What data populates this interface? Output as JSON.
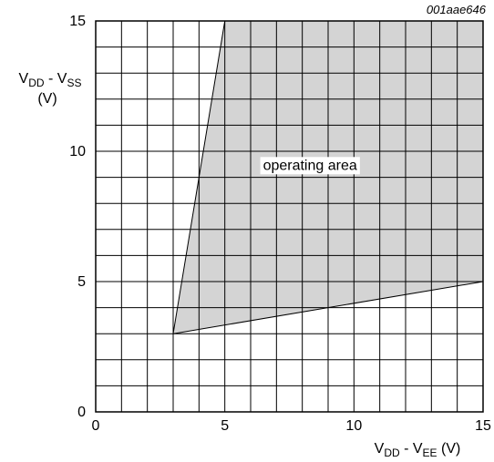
{
  "figure_id": "001aae646",
  "chart_data": {
    "type": "area",
    "x_label": {
      "main": "V",
      "sub1": "DD",
      "mid": " - V",
      "sub2": "EE",
      "unit": " (V)"
    },
    "y_label": {
      "main": "V",
      "sub1": "DD",
      "mid": " - V",
      "sub2": "SS",
      "unit": "(V)"
    },
    "xlim": [
      0,
      15
    ],
    "ylim": [
      0,
      15
    ],
    "x_ticks": [
      0,
      5,
      10,
      15
    ],
    "y_ticks": [
      0,
      5,
      10,
      15
    ],
    "grid": true,
    "grid_step": 1,
    "region": {
      "label": "operating area",
      "points": [
        [
          3,
          3
        ],
        [
          5,
          15
        ],
        [
          15,
          15
        ],
        [
          15,
          5
        ]
      ],
      "fill": "#d4d4d4"
    },
    "annotation_at": [
      8.3,
      9.5
    ]
  }
}
